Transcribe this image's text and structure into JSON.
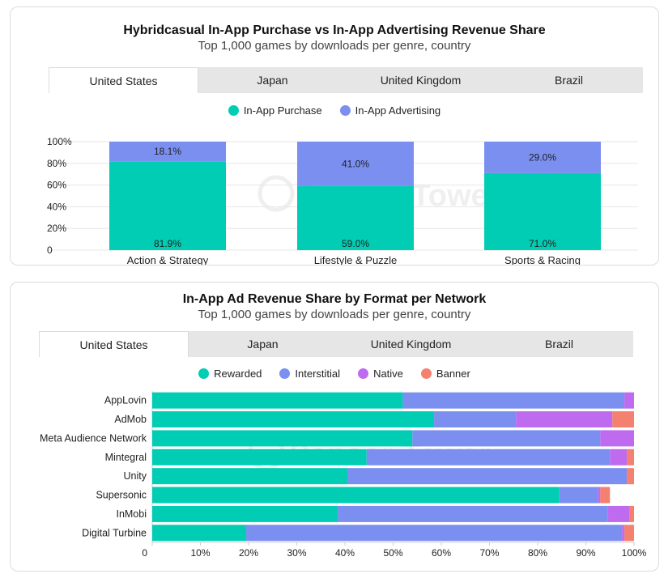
{
  "colors": {
    "in_app_purchase": "#00cdb4",
    "in_app_advertising": "#7b8ff0",
    "rewarded": "#00cdb4",
    "interstitial": "#7b8ff0",
    "native": "#be6bf0",
    "banner": "#f4806f"
  },
  "watermark": {
    "text": "Sensor Tower",
    "icon": "sensor-tower-logo-icon"
  },
  "panel1": {
    "title": "Hybridcasual In-App Purchase vs In-App Advertising Revenue Share",
    "subtitle": "Top 1,000 games by downloads per genre, country",
    "tabs": [
      "United States",
      "Japan",
      "United Kingdom",
      "Brazil"
    ],
    "legend": [
      "In-App Purchase",
      "In-App Advertising"
    ],
    "chart_data": {
      "type": "bar",
      "stacked": true,
      "categories": [
        "Action & Strategy",
        "Lifestyle & Puzzle",
        "Sports & Racing"
      ],
      "series": [
        {
          "name": "In-App Purchase",
          "values": [
            81.9,
            59.0,
            71.0
          ],
          "labels": [
            "81.9%",
            "59.0%",
            "71.0%"
          ]
        },
        {
          "name": "In-App Advertising",
          "values": [
            18.1,
            41.0,
            29.0
          ],
          "labels": [
            "18.1%",
            "41.0%",
            "29.0%"
          ]
        }
      ],
      "yticks": [
        "0",
        "20%",
        "40%",
        "60%",
        "80%",
        "100%"
      ],
      "ylim": [
        0,
        100
      ]
    }
  },
  "panel2": {
    "title": "In-App Ad Revenue Share by Format per Network",
    "subtitle": "Top 1,000 games by downloads per genre, country",
    "tabs": [
      "United States",
      "Japan",
      "United Kingdom",
      "Brazil"
    ],
    "legend": [
      "Rewarded",
      "Interstitial",
      "Native",
      "Banner"
    ],
    "chart_data": {
      "type": "bar",
      "orientation": "horizontal",
      "stacked": true,
      "categories": [
        "AppLovin",
        "AdMob",
        "Meta Audience Network",
        "Mintegral",
        "Unity",
        "Supersonic",
        "InMobi",
        "Digital Turbine"
      ],
      "series": [
        {
          "name": "Rewarded",
          "values": [
            52,
            58.5,
            54,
            44.5,
            40.5,
            84.5,
            38.5,
            19.5
          ]
        },
        {
          "name": "Interstitial",
          "values": [
            46,
            17,
            39,
            50.5,
            58,
            8,
            56,
            78
          ]
        },
        {
          "name": "Native",
          "values": [
            2,
            20,
            7,
            3.5,
            0,
            0.5,
            4.5,
            0.5
          ]
        },
        {
          "name": "Banner",
          "values": [
            0,
            4.5,
            0,
            1.5,
            1.5,
            2,
            1,
            2
          ]
        }
      ],
      "xticks": [
        "0",
        "10%",
        "20%",
        "30%",
        "40%",
        "50%",
        "60%",
        "70%",
        "80%",
        "90%",
        "100%"
      ],
      "xlim": [
        0,
        100
      ]
    }
  }
}
